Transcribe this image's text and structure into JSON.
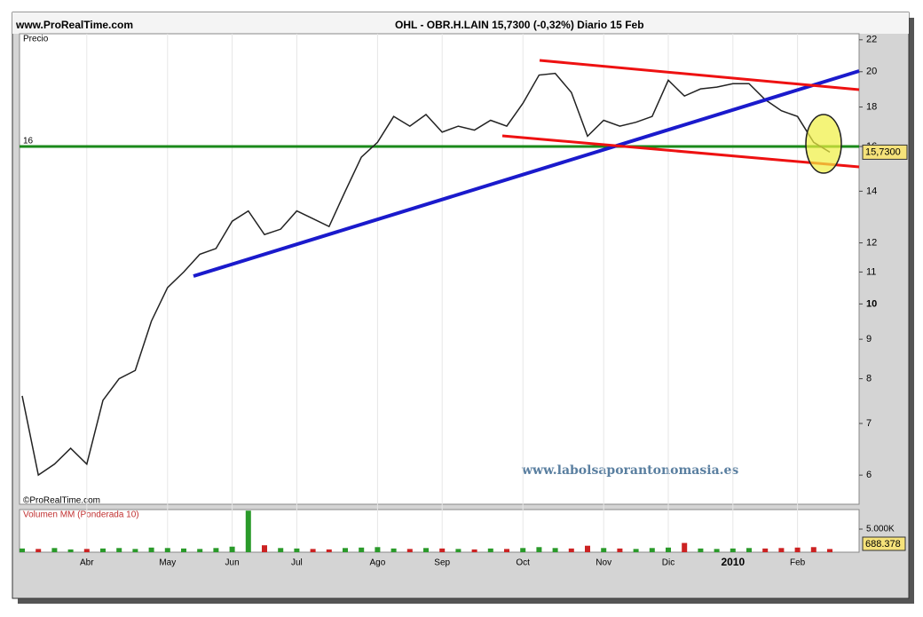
{
  "header": {
    "site": "www.ProRealTime.com",
    "title": "OHL - OBR.H.LAIN   15,7300 (-0,32%)   Diario  15 Feb"
  },
  "watermark": "www.labolsaporantonomasia.es",
  "copyright": "©ProRealTime.com",
  "chart_data": [
    {
      "type": "line",
      "title": "Precio",
      "log_scale": true,
      "color": "#222222",
      "categories": [
        "",
        null,
        null,
        null,
        "Abr",
        null,
        null,
        null,
        null,
        "May",
        null,
        null,
        null,
        "Jun",
        null,
        null,
        null,
        "Jul",
        null,
        null,
        null,
        null,
        "Ago",
        null,
        null,
        null,
        "Sep",
        null,
        null,
        null,
        null,
        "Oct",
        null,
        null,
        null,
        null,
        "Nov",
        null,
        null,
        null,
        "Dic",
        null,
        null,
        null,
        "2010",
        null,
        null,
        null,
        "Feb",
        null,
        null
      ],
      "values": [
        7.6,
        6.0,
        6.2,
        6.5,
        6.2,
        7.5,
        8.0,
        8.2,
        9.5,
        10.5,
        11.0,
        11.6,
        11.8,
        12.8,
        13.2,
        12.3,
        12.5,
        13.2,
        12.9,
        12.6,
        14.0,
        15.5,
        16.2,
        17.5,
        17.0,
        17.6,
        16.7,
        17.0,
        16.8,
        17.3,
        17.0,
        18.2,
        19.8,
        19.9,
        18.8,
        16.5,
        17.3,
        17.0,
        17.2,
        17.5,
        19.5,
        18.6,
        19.0,
        19.1,
        19.3,
        19.3,
        18.4,
        17.8,
        17.5,
        16.2,
        15.73
      ],
      "last_value_label": "15,7300",
      "hline": {
        "value": 16,
        "label": "16",
        "color": "#1a8a1a"
      },
      "ylim": [
        5.5,
        22.4
      ],
      "yticks": [
        6,
        7,
        8,
        9,
        10,
        11,
        12,
        14,
        16,
        18,
        20,
        22
      ]
    },
    {
      "type": "bar",
      "title": "Volumen MM (Ponderada 10)",
      "values": [
        800000,
        700000,
        900000,
        600000,
        700000,
        800000,
        900000,
        700000,
        1000000,
        900000,
        800000,
        700000,
        900000,
        1200000,
        9000000,
        1500000,
        900000,
        800000,
        700000,
        600000,
        900000,
        1000000,
        1100000,
        800000,
        700000,
        900000,
        800000,
        700000,
        600000,
        800000,
        700000,
        900000,
        1100000,
        900000,
        800000,
        1400000,
        900000,
        800000,
        700000,
        900000,
        1000000,
        2000000,
        800000,
        700000,
        800000,
        900000,
        800000,
        900000,
        1000000,
        1100000,
        688378
      ],
      "last_value_label": "688.378",
      "up_color": "#2a9a2a",
      "down_color": "#cc2222",
      "ylim": [
        0,
        9040000
      ],
      "yticks": [
        {
          "value": 5000000,
          "label": "5.000K"
        }
      ]
    }
  ]
}
